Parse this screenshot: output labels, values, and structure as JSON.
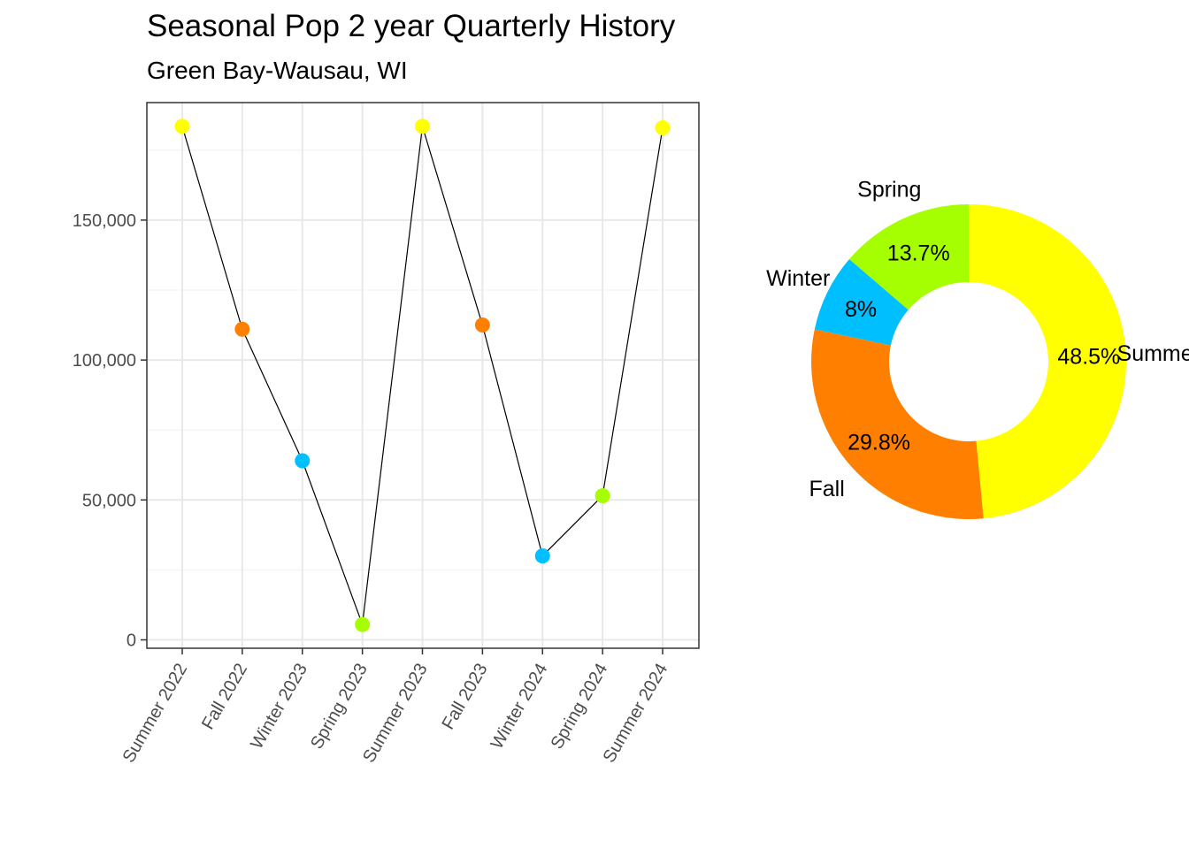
{
  "title": "Seasonal Pop 2 year Quarterly History",
  "subtitle": "Green Bay-Wausau, WI",
  "colors": {
    "Summer": "#FFFF00",
    "Fall": "#FF8000",
    "Winter": "#00BFFF",
    "Spring": "#A6FF00"
  },
  "chart_data": [
    {
      "type": "line",
      "x": [
        "Summer 2022",
        "Fall 2022",
        "Winter 2023",
        "Spring 2023",
        "Summer 2023",
        "Fall 2023",
        "Winter 2024",
        "Spring 2024",
        "Summer 2024"
      ],
      "series": [
        {
          "values": [
            183500,
            111000,
            64000,
            5500,
            183500,
            112500,
            30000,
            51500,
            183000
          ],
          "point_seasons": [
            "Summer",
            "Fall",
            "Winter",
            "Spring",
            "Summer",
            "Fall",
            "Winter",
            "Spring",
            "Summer"
          ]
        }
      ],
      "xlabel": "",
      "ylabel": "",
      "ylim": [
        -3000,
        192000
      ],
      "yticks": [
        0,
        50000,
        100000,
        150000
      ],
      "ytick_labels": [
        "0",
        "50,000",
        "100,000",
        "150,000"
      ],
      "grid": true
    },
    {
      "type": "pie",
      "donut": true,
      "slices": [
        {
          "label": "Summer",
          "value": 48.5,
          "value_label": "48.5%"
        },
        {
          "label": "Fall",
          "value": 29.8,
          "value_label": "29.8%"
        },
        {
          "label": "Winter",
          "value": 8,
          "value_label": "8%"
        },
        {
          "label": "Spring",
          "value": 13.7,
          "value_label": "13.7%"
        }
      ]
    }
  ]
}
